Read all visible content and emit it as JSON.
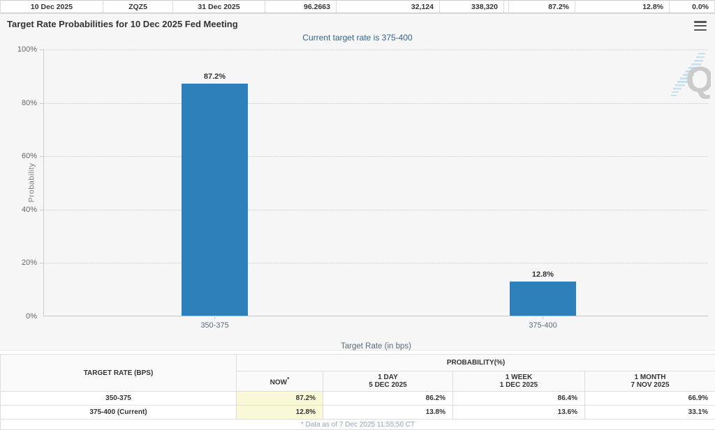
{
  "colors": {
    "bar_blue": "#2e80ba",
    "subtitle_blue": "#33628f",
    "highlight_yellow": "#f9f9d8",
    "footnote_blue_gray": "#93a9bf"
  },
  "top_strip": {
    "cells": [
      "10 Dec 2025",
      "ZQZ5",
      "31 Dec 2025",
      "96.2663",
      "32,124",
      "338,320",
      "87.2%",
      "12.8%",
      "0.0%"
    ]
  },
  "chart": {
    "title": "Target Rate Probabilities for 10 Dec 2025 Fed Meeting",
    "subtitle": "Current target rate is 375-400",
    "menu_icon": "hamburger-menu",
    "watermark_letter": "Q"
  },
  "chart_data": {
    "type": "bar",
    "title": "Target Rate Probabilities for 10 Dec 2025 Fed Meeting",
    "subtitle": "Current target rate is 375-400",
    "categories": [
      "350-375",
      "375-400"
    ],
    "values": [
      87.2,
      12.8
    ],
    "value_labels": [
      "87.2%",
      "12.8%"
    ],
    "xlabel": "Target Rate (in bps)",
    "ylabel": "Probability",
    "ylim": [
      0,
      100
    ],
    "yticks": [
      "100%",
      "80%",
      "60%",
      "40%",
      "20%",
      "0%"
    ],
    "grid": "horizontal-dotted",
    "legend": "none",
    "bar_color": "#2e80ba"
  },
  "table": {
    "rate_header": "TARGET RATE (BPS)",
    "group_header": "PROBABILITY(%)",
    "columns": [
      {
        "line1": "NOW",
        "sup": "*",
        "line2": ""
      },
      {
        "line1": "1 DAY",
        "sup": "",
        "line2": "5 DEC 2025"
      },
      {
        "line1": "1 WEEK",
        "sup": "",
        "line2": "1 DEC 2025"
      },
      {
        "line1": "1 MONTH",
        "sup": "",
        "line2": "7 NOV 2025"
      }
    ],
    "rows": [
      {
        "rate": "350-375",
        "now": "87.2%",
        "day": "86.2%",
        "week": "86.4%",
        "month": "66.9%"
      },
      {
        "rate": "375-400 (Current)",
        "now": "12.8%",
        "day": "13.8%",
        "week": "13.6%",
        "month": "33.1%"
      }
    ],
    "footnote": "* Data as of 7 Dec 2025 11:55:50 CT"
  }
}
